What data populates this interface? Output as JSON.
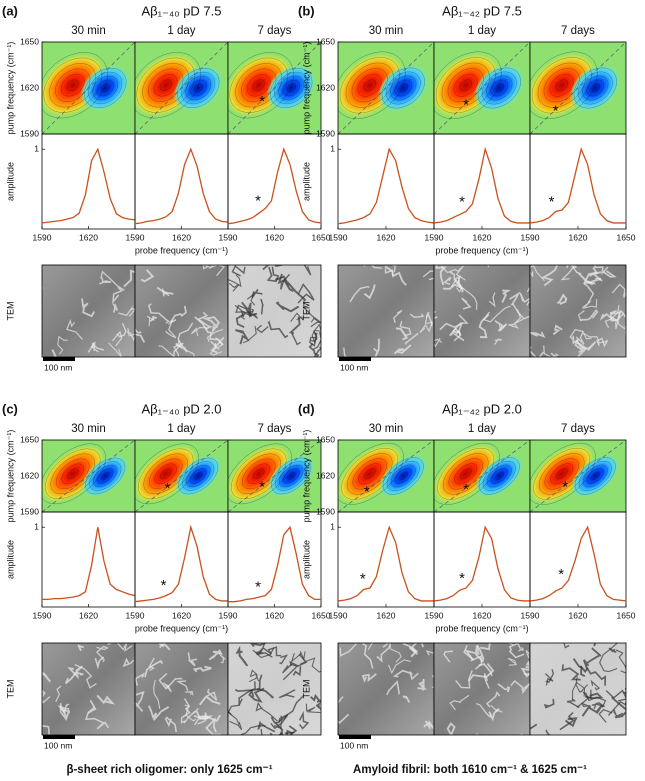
{
  "chart_data": [
    {
      "type": "line",
      "label": "(a)",
      "title": "Aβ₁₋₄₀  pD 7.5",
      "contour_ylabel": "pump frequency (cm⁻¹)",
      "ylabel": "amplitude",
      "xlabel": "probe frequency (cm⁻¹)",
      "tem_label": "TEM",
      "scale_bar": "100 nm",
      "xlim": [
        1590,
        1650
      ],
      "xticks": [
        1590,
        1620,
        1650
      ],
      "contour_ylim": [
        1590,
        1650
      ],
      "contour_yticks": [
        1590,
        1620,
        1650
      ],
      "ylim": [
        -0.05,
        1.2
      ],
      "yticks": [
        1
      ],
      "color": "#c8521e",
      "x": [
        1590,
        1594,
        1598,
        1602,
        1606,
        1610,
        1614,
        1618,
        1622,
        1626,
        1630,
        1634,
        1638,
        1642,
        1646,
        1650
      ],
      "series": [
        {
          "name": "30 min",
          "values": [
            0.03,
            0.04,
            0.05,
            0.06,
            0.08,
            0.1,
            0.16,
            0.4,
            0.85,
            1.0,
            0.7,
            0.35,
            0.15,
            0.1,
            0.08,
            0.07
          ]
        },
        {
          "name": "1 day",
          "values": [
            0.02,
            0.03,
            0.05,
            0.06,
            0.08,
            0.11,
            0.18,
            0.42,
            0.8,
            1.0,
            0.78,
            0.42,
            0.18,
            0.08,
            0.05,
            0.04
          ]
        },
        {
          "name": "7 days",
          "values": [
            0.02,
            0.03,
            0.05,
            0.07,
            0.1,
            0.16,
            0.22,
            0.32,
            0.7,
            1.0,
            0.8,
            0.45,
            0.18,
            0.07,
            0.04,
            0.03
          ],
          "annotation": {
            "text": "*",
            "x": 1612,
            "color": "#e03a3a"
          }
        }
      ]
    },
    {
      "type": "line",
      "label": "(b)",
      "title": "Aβ₁₋₄₂  pD 7.5",
      "contour_ylabel": "pump frequency (cm⁻¹)",
      "ylabel": "amplitude",
      "xlabel": "probe frequency (cm⁻¹)",
      "tem_label": "TEM",
      "scale_bar": "100 nm",
      "xlim": [
        1590,
        1650
      ],
      "xticks": [
        1590,
        1620,
        1650
      ],
      "contour_ylim": [
        1590,
        1650
      ],
      "contour_yticks": [
        1590,
        1620,
        1650
      ],
      "ylim": [
        -0.05,
        1.2
      ],
      "yticks": [
        1
      ],
      "color": "#c8521e",
      "x": [
        1590,
        1594,
        1598,
        1602,
        1606,
        1610,
        1614,
        1618,
        1622,
        1626,
        1630,
        1634,
        1638,
        1642,
        1646,
        1650
      ],
      "series": [
        {
          "name": "30 min",
          "values": [
            0.02,
            0.03,
            0.05,
            0.07,
            0.1,
            0.15,
            0.3,
            0.65,
            1.0,
            0.85,
            0.5,
            0.22,
            0.1,
            0.06,
            0.04,
            0.03
          ]
        },
        {
          "name": "1 day",
          "values": [
            0.03,
            0.04,
            0.06,
            0.1,
            0.14,
            0.18,
            0.28,
            0.6,
            1.0,
            0.75,
            0.35,
            0.12,
            0.05,
            0.03,
            0.03,
            0.03
          ],
          "annotation": {
            "text": "*",
            "x": 1610,
            "color": "#e03a3a"
          }
        },
        {
          "name": "7 days",
          "values": [
            0.03,
            0.04,
            0.06,
            0.1,
            0.18,
            0.2,
            0.3,
            0.65,
            1.0,
            0.8,
            0.4,
            0.15,
            0.06,
            0.03,
            0.03,
            0.03
          ],
          "annotation": {
            "text": "*",
            "x": 1606,
            "color": "#e03a3a"
          }
        }
      ]
    },
    {
      "type": "line",
      "label": "(c)",
      "title": "Aβ₁₋₄₀  pD 2.0",
      "contour_ylabel": "pump frequency (cm⁻¹)",
      "ylabel": "amplitude",
      "xlabel": "probe frequency (cm⁻¹)",
      "tem_label": "TEM",
      "scale_bar": "100 nm",
      "caption": "β-sheet rich oligomer: only 1625 cm⁻¹",
      "xlim": [
        1590,
        1650
      ],
      "xticks": [
        1590,
        1620,
        1650
      ],
      "contour_ylim": [
        1590,
        1650
      ],
      "contour_yticks": [
        1590,
        1620,
        1650
      ],
      "ylim": [
        -0.05,
        1.2
      ],
      "yticks": [
        1
      ],
      "color": "#c8521e",
      "x": [
        1590,
        1594,
        1598,
        1602,
        1606,
        1610,
        1614,
        1618,
        1622,
        1626,
        1630,
        1634,
        1638,
        1642,
        1646,
        1650
      ],
      "series": [
        {
          "name": "30 min",
          "values": [
            0.05,
            0.05,
            0.06,
            0.06,
            0.07,
            0.08,
            0.1,
            0.15,
            0.5,
            1.0,
            0.55,
            0.25,
            0.18,
            0.15,
            0.12,
            0.1
          ]
        },
        {
          "name": "1 day",
          "values": [
            0.02,
            0.03,
            0.04,
            0.05,
            0.07,
            0.1,
            0.14,
            0.25,
            0.6,
            1.0,
            0.75,
            0.35,
            0.12,
            0.05,
            0.03,
            0.03
          ],
          "annotation": {
            "text": "*",
            "x": 1611,
            "color": "#e03a3a"
          }
        },
        {
          "name": "7 days",
          "values": [
            0.02,
            0.02,
            0.03,
            0.05,
            0.06,
            0.08,
            0.1,
            0.18,
            0.5,
            0.9,
            1.0,
            0.65,
            0.25,
            0.1,
            0.05,
            0.05
          ],
          "annotation": {
            "text": "*",
            "x": 1612,
            "color": "#e03a3a"
          }
        }
      ]
    },
    {
      "type": "line",
      "label": "(d)",
      "title": "Aβ₁₋₄₂  pD 2.0",
      "contour_ylabel": "pump frequency (cm⁻¹)",
      "ylabel": "amplitude",
      "xlabel": "probe frequency (cm⁻¹)",
      "tem_label": "TEM",
      "scale_bar": "100 nm",
      "caption": "Amyloid fibril: both 1610 cm⁻¹ & 1625 cm⁻¹",
      "xlim": [
        1590,
        1650
      ],
      "xticks": [
        1590,
        1620,
        1650
      ],
      "contour_ylim": [
        1590,
        1650
      ],
      "contour_yticks": [
        1590,
        1620,
        1650
      ],
      "ylim": [
        -0.05,
        1.2
      ],
      "yticks": [
        1
      ],
      "color": "#c8521e",
      "x": [
        1590,
        1594,
        1598,
        1602,
        1606,
        1610,
        1614,
        1618,
        1622,
        1626,
        1630,
        1634,
        1638,
        1642,
        1646,
        1650
      ],
      "series": [
        {
          "name": "30 min",
          "values": [
            0.03,
            0.04,
            0.06,
            0.1,
            0.18,
            0.2,
            0.35,
            0.7,
            1.0,
            0.8,
            0.4,
            0.15,
            0.06,
            0.03,
            0.03,
            0.03
          ],
          "annotation": {
            "text": "*",
            "x": 1608,
            "color": "#e03a3a"
          }
        },
        {
          "name": "1 day",
          "values": [
            0.03,
            0.04,
            0.06,
            0.1,
            0.17,
            0.2,
            0.3,
            0.6,
            1.0,
            0.85,
            0.45,
            0.18,
            0.07,
            0.04,
            0.03,
            0.03
          ],
          "annotation": {
            "text": "*",
            "x": 1610,
            "color": "#e03a3a"
          }
        },
        {
          "name": "7 days",
          "values": [
            0.03,
            0.04,
            0.06,
            0.1,
            0.16,
            0.2,
            0.3,
            0.55,
            0.85,
            1.0,
            0.65,
            0.25,
            0.1,
            0.05,
            0.04,
            0.03
          ],
          "annotation": {
            "text": "*",
            "x": 1612,
            "color": "#e03a3a"
          }
        }
      ]
    }
  ]
}
